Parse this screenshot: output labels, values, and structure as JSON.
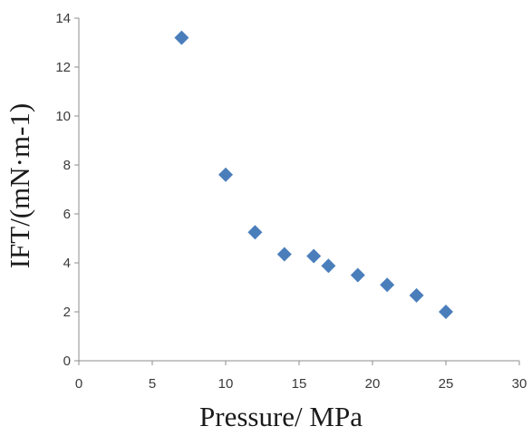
{
  "chart_data": {
    "type": "scatter",
    "title": "",
    "xlabel": "Pressure/ MPa",
    "ylabel": "IFT/(mN·m-1)",
    "xlim": [
      0,
      30
    ],
    "ylim": [
      0,
      14
    ],
    "x_ticks": [
      0,
      5,
      10,
      15,
      20,
      25,
      30
    ],
    "y_ticks": [
      0,
      2,
      4,
      6,
      8,
      10,
      12,
      14
    ],
    "grid": false,
    "legend": "none",
    "marker": "diamond",
    "marker_color": "#4a7ebb",
    "axis_color": "#8c8c8c",
    "points": [
      {
        "x": 7,
        "y": 13.2
      },
      {
        "x": 10,
        "y": 7.6
      },
      {
        "x": 12,
        "y": 5.25
      },
      {
        "x": 14,
        "y": 4.35
      },
      {
        "x": 16,
        "y": 4.28
      },
      {
        "x": 17,
        "y": 3.88
      },
      {
        "x": 19,
        "y": 3.5
      },
      {
        "x": 21,
        "y": 3.1
      },
      {
        "x": 23,
        "y": 2.67
      },
      {
        "x": 25,
        "y": 2.0
      }
    ]
  }
}
